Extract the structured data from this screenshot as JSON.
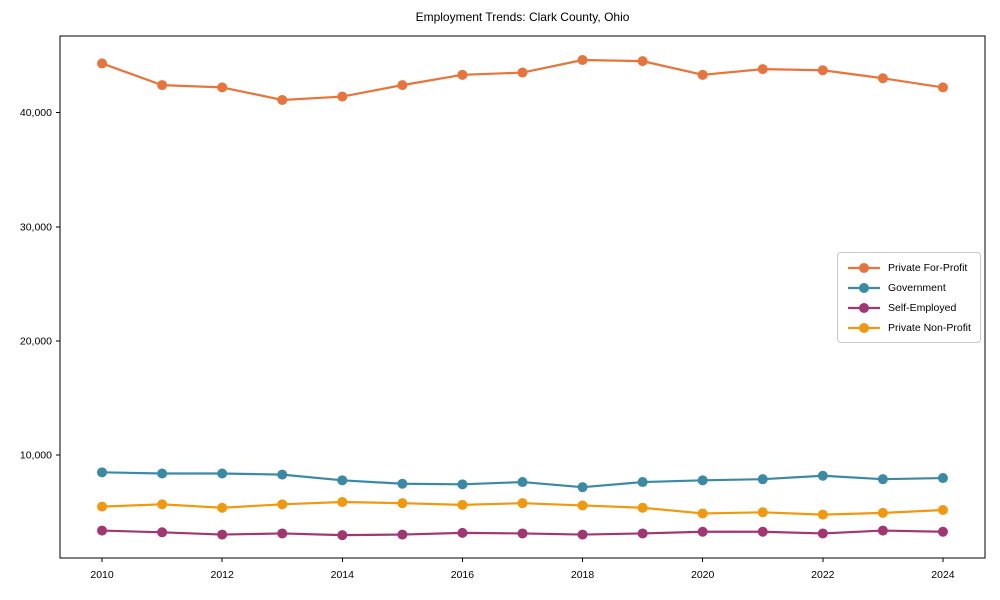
{
  "figure": {
    "background": "#ffffff",
    "axis_color": "#000000"
  },
  "chart_data": {
    "type": "line",
    "title": "Employment Trends: Clark County, Ohio",
    "xlabel": "",
    "ylabel": "",
    "x": [
      2010,
      2011,
      2012,
      2013,
      2014,
      2015,
      2016,
      2017,
      2018,
      2019,
      2020,
      2021,
      2022,
      2023,
      2024
    ],
    "series": [
      {
        "name": "Private For-Profit",
        "color": "#e8743b",
        "marker": "circle",
        "values": [
          44300,
          42400,
          42200,
          41100,
          41400,
          42400,
          43300,
          43500,
          44600,
          44500,
          43300,
          43800,
          43700,
          43000,
          42200
        ]
      },
      {
        "name": "Government",
        "color": "#3a89a5",
        "marker": "circle",
        "values": [
          8500,
          8400,
          8400,
          8300,
          7800,
          7500,
          7450,
          7650,
          7200,
          7650,
          7800,
          7900,
          8200,
          7900,
          8000
        ]
      },
      {
        "name": "Self-Employed",
        "color": "#a23670",
        "marker": "circle",
        "values": [
          3400,
          3250,
          3050,
          3150,
          3000,
          3050,
          3200,
          3150,
          3050,
          3150,
          3300,
          3300,
          3150,
          3400,
          3300
        ]
      },
      {
        "name": "Private Non-Profit",
        "color": "#f0990e",
        "marker": "circle",
        "values": [
          5500,
          5700,
          5400,
          5700,
          5900,
          5800,
          5650,
          5800,
          5600,
          5400,
          4900,
          5000,
          4800,
          4950,
          5200
        ]
      }
    ],
    "xticks": [
      2010,
      2012,
      2014,
      2016,
      2018,
      2020,
      2022,
      2024
    ],
    "xtick_labels": [
      "2010",
      "2012",
      "2014",
      "2016",
      "2018",
      "2020",
      "2022",
      "2024"
    ],
    "yticks": [
      10000,
      20000,
      30000,
      40000
    ],
    "ytick_labels": [
      "10,000",
      "20,000",
      "30,000",
      "40,000"
    ],
    "xlim": [
      2009.3,
      2024.7
    ],
    "ylim": [
      1000,
      46700
    ],
    "grid": false,
    "legend_position": "center-right"
  }
}
